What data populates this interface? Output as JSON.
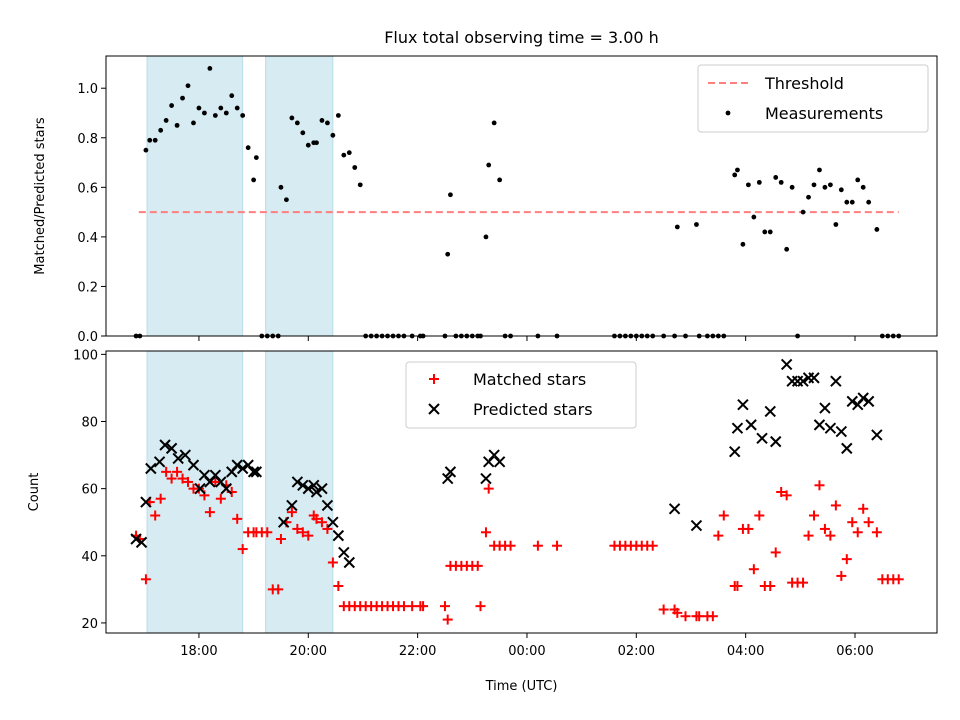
{
  "figure": {
    "title": "Flux total observing time = 3.00 h",
    "xlabel": "Time (UTC)",
    "x_unit": "hours (UTC, relative to 00:00 of the second day)"
  },
  "colors": {
    "span": "#add8e6",
    "threshold": "#ff7f7f",
    "measurements": "#000000",
    "matched": "#ff0000",
    "predicted": "#000000"
  },
  "chart_data": [
    {
      "type": "scatter",
      "ylabel": "Matched/Predicted stars",
      "xlim": [
        -7.7,
        7.5
      ],
      "ylim": [
        0,
        1.13
      ],
      "yticks": [
        0.0,
        0.2,
        0.4,
        0.6,
        0.8,
        1.0
      ],
      "ytick_labels": [
        "0.0",
        "0.2",
        "0.4",
        "0.6",
        "0.8",
        "1.0"
      ],
      "xticks": [
        -6,
        -4,
        -2,
        0,
        2,
        4,
        6
      ],
      "shaded_spans": [
        [
          -6.95,
          -5.2
        ],
        [
          -4.78,
          -3.55
        ]
      ],
      "legend": {
        "position": "upper right",
        "entries": [
          "Threshold",
          "Measurements"
        ]
      },
      "threshold": {
        "name": "Threshold",
        "x": [
          -7.1,
          6.8
        ],
        "y": 0.5
      },
      "measurements": {
        "name": "Measurements",
        "x": [
          -7.15,
          -7.08,
          -6.97,
          -6.9,
          -6.8,
          -6.7,
          -6.6,
          -6.5,
          -6.4,
          -6.3,
          -6.2,
          -6.1,
          -6.0,
          -5.9,
          -5.8,
          -5.7,
          -5.6,
          -5.5,
          -5.4,
          -5.3,
          -5.2,
          -5.1,
          -5.0,
          -4.95,
          -4.85,
          -4.75,
          -4.65,
          -4.55,
          -4.5,
          -4.4,
          -4.3,
          -4.2,
          -4.1,
          -4.0,
          -3.9,
          -3.85,
          -3.75,
          -3.65,
          -3.55,
          -3.45,
          -3.35,
          -3.25,
          -3.15,
          -3.05,
          -2.95,
          -2.85,
          -2.75,
          -2.65,
          -2.55,
          -2.45,
          -2.35,
          -2.25,
          -2.1,
          -1.95,
          -1.9,
          -1.5,
          -1.45,
          -1.4,
          -1.3,
          -1.2,
          -1.1,
          -1.0,
          -0.9,
          -0.85,
          -0.75,
          -0.7,
          -0.6,
          -0.5,
          -0.4,
          -0.3,
          0.2,
          0.55,
          1.6,
          1.7,
          1.8,
          1.9,
          2.0,
          2.1,
          2.2,
          2.3,
          2.5,
          2.7,
          2.75,
          2.9,
          3.1,
          3.15,
          3.3,
          3.4,
          3.5,
          3.6,
          3.8,
          3.85,
          3.95,
          4.05,
          4.15,
          4.25,
          4.35,
          4.45,
          4.55,
          4.65,
          4.75,
          4.85,
          4.95,
          5.05,
          5.15,
          5.25,
          5.35,
          5.45,
          5.55,
          5.65,
          5.75,
          5.85,
          5.95,
          6.05,
          6.15,
          6.25,
          6.4,
          6.5,
          6.6,
          6.7,
          6.8
        ],
        "y": [
          0.0,
          0.0,
          0.75,
          0.79,
          0.79,
          0.83,
          0.87,
          0.93,
          0.85,
          0.96,
          1.01,
          0.86,
          0.92,
          0.9,
          1.08,
          0.89,
          0.92,
          0.9,
          0.97,
          0.92,
          0.89,
          0.76,
          0.63,
          0.72,
          0.0,
          0.0,
          0.0,
          0.0,
          0.6,
          0.55,
          0.88,
          0.86,
          0.82,
          0.77,
          0.78,
          0.78,
          0.87,
          0.86,
          0.81,
          0.89,
          0.73,
          0.74,
          0.68,
          0.61,
          0.0,
          0.0,
          0.0,
          0.0,
          0.0,
          0.0,
          0.0,
          0.0,
          0.0,
          0.0,
          0.0,
          0.0,
          0.33,
          0.57,
          0.0,
          0.0,
          0.0,
          0.0,
          0.0,
          0.0,
          0.4,
          0.69,
          0.86,
          0.63,
          0.0,
          0.0,
          0.0,
          0.0,
          0.0,
          0.0,
          0.0,
          0.0,
          0.0,
          0.0,
          0.0,
          0.0,
          0.0,
          0.0,
          0.44,
          0.0,
          0.45,
          0.0,
          0.0,
          0.0,
          0.0,
          0.0,
          0.65,
          0.67,
          0.37,
          0.61,
          0.48,
          0.62,
          0.42,
          0.42,
          0.64,
          0.62,
          0.35,
          0.6,
          0.0,
          0.5,
          0.56,
          0.61,
          0.67,
          0.6,
          0.61,
          0.45,
          0.59,
          0.54,
          0.54,
          0.63,
          0.6,
          0.54,
          0.43,
          0.0,
          0.0,
          0.0,
          0.0
        ]
      }
    },
    {
      "type": "scatter",
      "ylabel": "Count",
      "xlim": [
        -7.7,
        7.5
      ],
      "ylim": [
        17,
        101
      ],
      "yticks": [
        20,
        40,
        60,
        80,
        100
      ],
      "ytick_labels": [
        "20",
        "40",
        "60",
        "80",
        "100"
      ],
      "xticks": [
        -6,
        -4,
        -2,
        0,
        2,
        4,
        6
      ],
      "xtick_labels": [
        "18:00",
        "20:00",
        "22:00",
        "00:00",
        "02:00",
        "04:00",
        "06:00"
      ],
      "shaded_spans": [
        [
          -6.95,
          -5.2
        ],
        [
          -4.78,
          -3.55
        ]
      ],
      "legend": {
        "position": "upper center",
        "entries": [
          "Matched stars",
          "Predicted stars"
        ]
      },
      "matched": {
        "name": "Matched stars",
        "x": [
          -7.15,
          -7.08,
          -6.97,
          -6.9,
          -6.8,
          -6.7,
          -6.6,
          -6.5,
          -6.4,
          -6.3,
          -6.2,
          -6.1,
          -6.0,
          -5.9,
          -5.8,
          -5.7,
          -5.6,
          -5.5,
          -5.4,
          -5.3,
          -5.2,
          -5.1,
          -5.0,
          -4.95,
          -4.85,
          -4.75,
          -4.65,
          -4.55,
          -4.5,
          -4.4,
          -4.3,
          -4.2,
          -4.1,
          -4.0,
          -3.9,
          -3.85,
          -3.75,
          -3.65,
          -3.55,
          -3.45,
          -3.35,
          -3.25,
          -3.15,
          -3.05,
          -2.95,
          -2.85,
          -2.75,
          -2.65,
          -2.55,
          -2.45,
          -2.35,
          -2.25,
          -2.1,
          -1.95,
          -1.9,
          -1.5,
          -1.45,
          -1.4,
          -1.3,
          -1.2,
          -1.1,
          -1.0,
          -0.9,
          -0.85,
          -0.75,
          -0.7,
          -0.6,
          -0.5,
          -0.4,
          -0.3,
          0.2,
          0.55,
          1.6,
          1.7,
          1.8,
          1.9,
          2.0,
          2.1,
          2.2,
          2.3,
          2.5,
          2.7,
          2.75,
          2.9,
          3.1,
          3.15,
          3.3,
          3.4,
          3.5,
          3.6,
          3.8,
          3.85,
          3.95,
          4.05,
          4.15,
          4.25,
          4.35,
          4.45,
          4.55,
          4.65,
          4.75,
          4.85,
          4.95,
          5.05,
          5.15,
          5.25,
          5.35,
          5.45,
          5.55,
          5.65,
          5.75,
          5.85,
          5.95,
          6.05,
          6.15,
          6.25,
          6.4,
          6.5,
          6.6,
          6.7,
          6.8
        ],
        "y": [
          46,
          45,
          33,
          56,
          52,
          57,
          65,
          63,
          65,
          63,
          62,
          60,
          60,
          58,
          53,
          62,
          57,
          61,
          59,
          51,
          42,
          47,
          47,
          47,
          47,
          47,
          30,
          30,
          45,
          50,
          53,
          48,
          47,
          46,
          52,
          51,
          50,
          48,
          38,
          31,
          25,
          25,
          25,
          25,
          25,
          25,
          25,
          25,
          25,
          25,
          25,
          25,
          25,
          25,
          25,
          25,
          21,
          37,
          37,
          37,
          37,
          37,
          37,
          25,
          47,
          60,
          43,
          43,
          43,
          43,
          43,
          43,
          43,
          43,
          43,
          43,
          43,
          43,
          43,
          43,
          24,
          24,
          23,
          22,
          22,
          22,
          22,
          22,
          46,
          52,
          31,
          31,
          48,
          48,
          36,
          52,
          31,
          31,
          41,
          59,
          58,
          32,
          32,
          32,
          46,
          52,
          61,
          48,
          46,
          55,
          34,
          39,
          50,
          47,
          54,
          50,
          47,
          33,
          33,
          33,
          33
        ]
      },
      "predicted": {
        "name": "Predicted stars",
        "x": [
          -7.15,
          -7.05,
          -6.97,
          -6.88,
          -6.72,
          -6.62,
          -6.5,
          -6.38,
          -6.25,
          -6.1,
          -5.98,
          -5.9,
          -5.8,
          -5.7,
          -5.6,
          -5.5,
          -5.4,
          -5.3,
          -5.2,
          -5.1,
          -5.0,
          -4.95,
          -4.45,
          -4.3,
          -4.2,
          -4.1,
          -4.0,
          -3.9,
          -3.85,
          -3.75,
          -3.65,
          -3.55,
          -3.45,
          -3.35,
          -3.25,
          -1.45,
          -1.4,
          -0.75,
          -0.7,
          -0.6,
          -0.5,
          2.7,
          3.1,
          3.8,
          3.85,
          3.95,
          4.1,
          4.3,
          4.45,
          4.55,
          4.75,
          4.85,
          4.95,
          5.05,
          5.15,
          5.25,
          5.35,
          5.45,
          5.55,
          5.65,
          5.75,
          5.85,
          5.95,
          6.05,
          6.15,
          6.25,
          6.4
        ],
        "y": [
          45,
          44,
          56,
          66,
          68,
          73,
          72,
          69,
          70,
          67,
          60,
          64,
          62,
          64,
          62,
          60,
          65,
          67,
          66,
          67,
          65,
          65,
          50,
          55,
          62,
          61,
          60,
          61,
          59,
          60,
          55,
          50,
          46,
          41,
          38,
          63,
          65,
          63,
          68,
          70,
          68,
          54,
          49,
          71,
          78,
          85,
          79,
          75,
          83,
          74,
          97,
          92,
          92,
          92,
          93,
          93,
          79,
          84,
          78,
          92,
          77,
          72,
          86,
          85,
          87,
          86,
          76
        ]
      }
    }
  ]
}
